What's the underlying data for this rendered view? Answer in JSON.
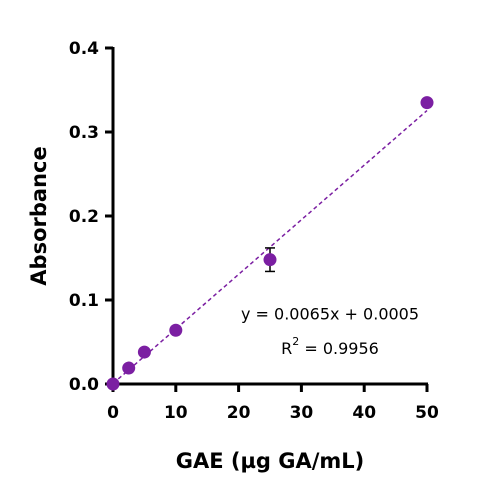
{
  "chart_data": {
    "type": "scatter",
    "x_label": "GAE (µg GA/mL)",
    "y_label": "Absorbance",
    "series": [
      {
        "color": "#7b1fa2",
        "x": [
          0,
          2.5,
          5,
          10,
          25,
          50
        ],
        "values": [
          0.0,
          0.019,
          0.038,
          0.064,
          0.148,
          0.335
        ],
        "errors": [
          null,
          null,
          null,
          null,
          0.014,
          null
        ]
      }
    ],
    "fit": {
      "slope": 0.0065,
      "intercept": 0.0005,
      "color": "#7b1fa2",
      "dashed": true
    },
    "equation": "y = 0.0065x + 0.0005",
    "r_squared": {
      "prefix": "R",
      "superscript": "2",
      "suffix": " = 0.9956"
    },
    "xlim": [
      0,
      50
    ],
    "xticks": [
      0,
      10,
      20,
      30,
      40,
      50
    ],
    "ylim": [
      0,
      0.4
    ],
    "yticks": [
      {
        "value": 0,
        "label": "0.0"
      },
      0.1,
      0.2,
      0.3,
      0.4
    ]
  }
}
